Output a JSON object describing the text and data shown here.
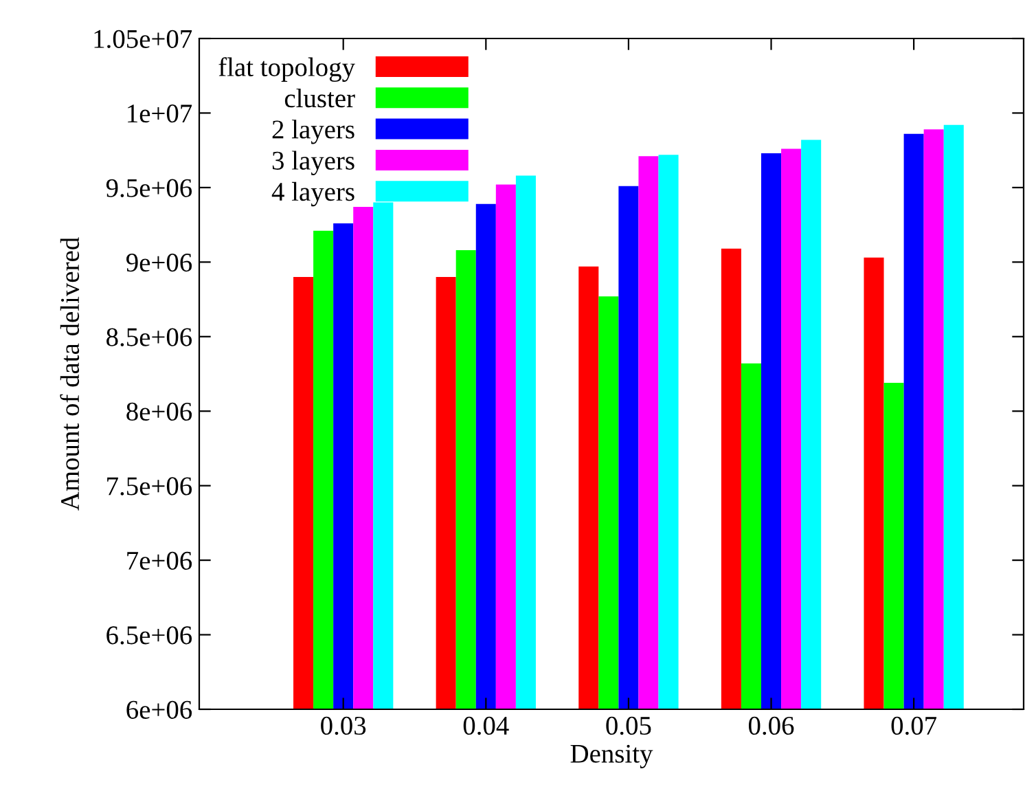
{
  "chart_data": {
    "type": "bar",
    "xlabel": "Density",
    "ylabel": "Amount of data delivered",
    "categories": [
      "0.03",
      "0.04",
      "0.05",
      "0.06",
      "0.07"
    ],
    "series": [
      {
        "name": "flat topology",
        "color": "#ff0000",
        "values": [
          8900000.0,
          8900000.0,
          8970000.0,
          9090000.0,
          9030000.0
        ]
      },
      {
        "name": "cluster",
        "color": "#00ff00",
        "values": [
          9210000.0,
          9080000.0,
          8770000.0,
          8320000.0,
          8190000.0
        ]
      },
      {
        "name": "2 layers",
        "color": "#0000ff",
        "values": [
          9260000.0,
          9390000.0,
          9510000.0,
          9730000.0,
          9860000.0
        ]
      },
      {
        "name": "3 layers",
        "color": "#ff00ff",
        "values": [
          9370000.0,
          9520000.0,
          9710000.0,
          9760000.0,
          9890000.0
        ]
      },
      {
        "name": "4 layers",
        "color": "#00ffff",
        "values": [
          9400000.0,
          9580000.0,
          9720000.0,
          9820000.0,
          9920000.0
        ]
      }
    ],
    "ylim": [
      6000000,
      10500000
    ],
    "yticks": [
      {
        "value": 6000000,
        "label": "6e+06"
      },
      {
        "value": 6500000,
        "label": "6.5e+06"
      },
      {
        "value": 7000000,
        "label": "7e+06"
      },
      {
        "value": 7500000,
        "label": "7.5e+06"
      },
      {
        "value": 8000000,
        "label": "8e+06"
      },
      {
        "value": 8500000,
        "label": "8.5e+06"
      },
      {
        "value": 9000000,
        "label": "9e+06"
      },
      {
        "value": 9500000,
        "label": "9.5e+06"
      },
      {
        "value": 10000000,
        "label": "1e+07"
      },
      {
        "value": 10500000,
        "label": "1.05e+07"
      }
    ],
    "grid": false,
    "legend": "top left"
  }
}
